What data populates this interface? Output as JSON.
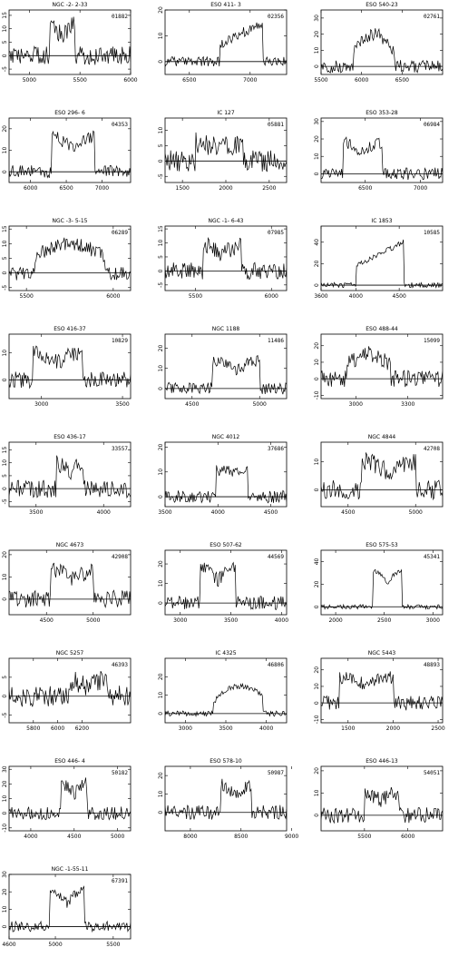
{
  "figure": {
    "layout": {
      "columns": 3,
      "rows": 9
    }
  },
  "chart_data": [
    {
      "type": "line",
      "title": "NGC -2- 2-33",
      "id": "01882",
      "xlim": [
        4800,
        6000
      ],
      "ylim": [
        -7,
        17
      ],
      "xticks": [
        5000,
        5500,
        6000
      ],
      "yticks": [
        -5,
        0,
        5,
        10,
        15
      ],
      "baseline": 0,
      "profile": {
        "lo": 5200,
        "hi": 5450,
        "height": 11
      },
      "noise": 3.5,
      "shape": "double",
      "seed": 1
    },
    {
      "type": "line",
      "title": "ESO 411- 3",
      "id": "02356",
      "xlim": [
        6300,
        7300
      ],
      "ylim": [
        -5,
        20
      ],
      "xticks": [
        6500,
        7000
      ],
      "yticks": [
        0,
        10,
        20
      ],
      "baseline": 0,
      "profile": {
        "lo": 6750,
        "hi": 7100,
        "height": 15
      },
      "noise": 2,
      "shape": "ramp",
      "seed": 2
    },
    {
      "type": "line",
      "title": "ESO 540-23",
      "id": "02761",
      "xlim": [
        5500,
        7000
      ],
      "ylim": [
        -5,
        35
      ],
      "xticks": [
        5500,
        6000,
        6500
      ],
      "yticks": [
        0,
        10,
        20,
        30
      ],
      "baseline": 0,
      "profile": {
        "lo": 5900,
        "hi": 6400,
        "height": 20
      },
      "noise": 4,
      "shape": "peaked",
      "seed": 3
    },
    {
      "type": "line",
      "title": "ESO 296- 6",
      "id": "04353",
      "xlim": [
        5700,
        7400
      ],
      "ylim": [
        -5,
        25
      ],
      "xticks": [
        6000,
        6500,
        7000
      ],
      "yticks": [
        0,
        10,
        20
      ],
      "baseline": 0,
      "profile": {
        "lo": 6300,
        "hi": 6900,
        "height": 16
      },
      "noise": 3,
      "shape": "double",
      "seed": 4
    },
    {
      "type": "line",
      "title": "IC 127",
      "id": "05881",
      "xlim": [
        1300,
        2700
      ],
      "ylim": [
        -7,
        14
      ],
      "xticks": [
        1500,
        2000,
        2500
      ],
      "yticks": [
        -5,
        0,
        5,
        10
      ],
      "baseline": 0,
      "profile": {
        "lo": 1650,
        "hi": 2200,
        "height": 6
      },
      "noise": 3.5,
      "shape": "double",
      "seed": 5
    },
    {
      "type": "line",
      "title": "ESO 353-28",
      "id": "06984",
      "xlim": [
        6100,
        7200
      ],
      "ylim": [
        -5,
        32
      ],
      "xticks": [
        6500,
        7000
      ],
      "yticks": [
        0,
        10,
        20,
        30
      ],
      "baseline": 0,
      "profile": {
        "lo": 6300,
        "hi": 6650,
        "height": 18
      },
      "noise": 3.5,
      "shape": "double",
      "seed": 6
    },
    {
      "type": "line",
      "title": "NGC -3- 5-15",
      "id": "06289",
      "xlim": [
        5400,
        6100
      ],
      "ylim": [
        -6,
        16
      ],
      "xticks": [
        5500,
        6000
      ],
      "yticks": [
        -5,
        0,
        5,
        10,
        15
      ],
      "baseline": 0,
      "profile": {
        "lo": 5550,
        "hi": 5950,
        "height": 10
      },
      "noise": 2.5,
      "shape": "dome",
      "seed": 7
    },
    {
      "type": "line",
      "title": "NGC -1- 6-43",
      "id": "07985",
      "xlim": [
        5300,
        6100
      ],
      "ylim": [
        -7,
        16
      ],
      "xticks": [
        5500,
        6000
      ],
      "yticks": [
        -5,
        0,
        5,
        10,
        15
      ],
      "baseline": 0,
      "profile": {
        "lo": 5550,
        "hi": 5800,
        "height": 9
      },
      "noise": 3,
      "shape": "double",
      "seed": 8
    },
    {
      "type": "line",
      "title": "IC 1853",
      "id": "10585",
      "xlim": [
        3600,
        5000
      ],
      "ylim": [
        -5,
        55
      ],
      "xticks": [
        3600,
        4000,
        4500
      ],
      "yticks": [
        0,
        20,
        40
      ],
      "baseline": 0,
      "profile": {
        "lo": 4000,
        "hi": 4550,
        "height": 40
      },
      "noise": 2.5,
      "shape": "ramp",
      "seed": 9
    },
    {
      "type": "line",
      "title": "ESO 416-37",
      "id": "10829",
      "xlim": [
        2800,
        3550
      ],
      "ylim": [
        -7,
        17
      ],
      "xticks": [
        3000,
        3500
      ],
      "yticks": [
        0,
        10
      ],
      "baseline": 0,
      "profile": {
        "lo": 2950,
        "hi": 3250,
        "height": 10
      },
      "noise": 3,
      "shape": "double",
      "seed": 10
    },
    {
      "type": "line",
      "title": "NGC 1188",
      "id": "11486",
      "xlim": [
        4300,
        5200
      ],
      "ylim": [
        -5,
        27
      ],
      "xticks": [
        4500,
        5000
      ],
      "yticks": [
        0,
        10,
        20
      ],
      "baseline": 0,
      "profile": {
        "lo": 4650,
        "hi": 5000,
        "height": 14
      },
      "noise": 3,
      "shape": "double",
      "seed": 11
    },
    {
      "type": "line",
      "title": "ESO 488-44",
      "id": "15099",
      "xlim": [
        2800,
        3500
      ],
      "ylim": [
        -12,
        27
      ],
      "xticks": [
        3000,
        3300
      ],
      "yticks": [
        -10,
        0,
        10,
        20
      ],
      "baseline": 0,
      "profile": {
        "lo": 2950,
        "hi": 3200,
        "height": 15
      },
      "noise": 5,
      "shape": "dome",
      "seed": 12
    },
    {
      "type": "line",
      "title": "ESO 436-17",
      "id": "33557",
      "xlim": [
        3300,
        4200
      ],
      "ylim": [
        -7,
        18
      ],
      "xticks": [
        3500,
        4000
      ],
      "yticks": [
        -5,
        0,
        5,
        10,
        15
      ],
      "baseline": 0,
      "profile": {
        "lo": 3650,
        "hi": 3850,
        "height": 10
      },
      "noise": 3.5,
      "shape": "double",
      "seed": 13
    },
    {
      "type": "line",
      "title": "NGC 4012",
      "id": "37686",
      "xlim": [
        3500,
        4650
      ],
      "ylim": [
        -4,
        22
      ],
      "xticks": [
        3500,
        4000,
        4500
      ],
      "yticks": [
        0,
        10,
        20
      ],
      "baseline": 0,
      "profile": {
        "lo": 3980,
        "hi": 4280,
        "height": 12
      },
      "noise": 2.5,
      "shape": "box",
      "seed": 14
    },
    {
      "type": "line",
      "title": "NGC 4844",
      "id": "42708",
      "xlim": [
        4300,
        5200
      ],
      "ylim": [
        -6,
        17
      ],
      "xticks": [
        4500,
        5000
      ],
      "yticks": [
        0,
        10
      ],
      "baseline": 0,
      "profile": {
        "lo": 4600,
        "hi": 5000,
        "height": 10
      },
      "noise": 3.5,
      "shape": "double",
      "seed": 15
    },
    {
      "type": "line",
      "title": "NGC 4673",
      "id": "42908",
      "xlim": [
        4100,
        5400
      ],
      "ylim": [
        -7,
        22
      ],
      "xticks": [
        4500,
        5000
      ],
      "yticks": [
        0,
        10,
        20
      ],
      "baseline": 0,
      "profile": {
        "lo": 4550,
        "hi": 5000,
        "height": 13
      },
      "noise": 4,
      "shape": "double",
      "seed": 16
    },
    {
      "type": "line",
      "title": "ESO 507-62",
      "id": "44569",
      "xlim": [
        2850,
        4050
      ],
      "ylim": [
        -6,
        27
      ],
      "xticks": [
        3000,
        3500,
        4000
      ],
      "yticks": [
        0,
        10,
        20
      ],
      "baseline": 0,
      "profile": {
        "lo": 3200,
        "hi": 3550,
        "height": 18
      },
      "noise": 3.5,
      "shape": "double",
      "seed": 17
    },
    {
      "type": "line",
      "title": "ESO 575-53",
      "id": "45341",
      "xlim": [
        1850,
        3100
      ],
      "ylim": [
        -7,
        50
      ],
      "xticks": [
        2000,
        2500,
        3000
      ],
      "yticks": [
        0,
        20,
        40
      ],
      "baseline": 0,
      "profile": {
        "lo": 2380,
        "hi": 2680,
        "height": 32
      },
      "noise": 2,
      "shape": "double",
      "seed": 18
    },
    {
      "type": "line",
      "title": "NGC 5257",
      "id": "46393",
      "xlim": [
        5600,
        6600
      ],
      "ylim": [
        -7,
        10
      ],
      "xticks": [
        5800,
        6000,
        6200
      ],
      "yticks": [
        -5,
        0,
        5
      ],
      "baseline": 0,
      "profile": {
        "lo": 6100,
        "hi": 6400,
        "height": 4
      },
      "noise": 2.8,
      "shape": "double",
      "seed": 19
    },
    {
      "type": "line",
      "title": "IC 4325",
      "id": "46806",
      "xlim": [
        2750,
        4250
      ],
      "ylim": [
        -5,
        30
      ],
      "xticks": [
        3000,
        3500,
        4000
      ],
      "yticks": [
        0,
        10,
        20
      ],
      "baseline": 0,
      "profile": {
        "lo": 3350,
        "hi": 3950,
        "height": 15
      },
      "noise": 1.5,
      "shape": "smooth",
      "seed": 20
    },
    {
      "type": "line",
      "title": "NGC 5443",
      "id": "48893",
      "xlim": [
        1200,
        2550
      ],
      "ylim": [
        -12,
        27
      ],
      "xticks": [
        1500,
        2000,
        2500
      ],
      "yticks": [
        -10,
        0,
        10,
        20
      ],
      "baseline": 0,
      "profile": {
        "lo": 1400,
        "hi": 2000,
        "height": 16
      },
      "noise": 4.5,
      "shape": "double",
      "seed": 21
    },
    {
      "type": "line",
      "title": "ESO 446- 4",
      "id": "50182",
      "xlim": [
        3750,
        5150
      ],
      "ylim": [
        -12,
        32
      ],
      "xticks": [
        4000,
        4500,
        5000
      ],
      "yticks": [
        -10,
        0,
        10,
        20,
        30
      ],
      "baseline": 0,
      "profile": {
        "lo": 4350,
        "hi": 4650,
        "height": 20
      },
      "noise": 4.5,
      "shape": "double",
      "seed": 22
    },
    {
      "type": "line",
      "title": "ESO 578-10",
      "id": "50987",
      "xlim": [
        7750,
        8950
      ],
      "ylim": [
        -10,
        25
      ],
      "xticks": [
        8000,
        8500,
        9000
      ],
      "yticks": [
        0,
        10,
        20
      ],
      "baseline": 0,
      "profile": {
        "lo": 8300,
        "hi": 8600,
        "height": 15
      },
      "noise": 4,
      "shape": "double",
      "seed": 23
    },
    {
      "type": "line",
      "title": "ESO 446-13",
      "id": "54051",
      "xlim": [
        5000,
        6400
      ],
      "ylim": [
        -7,
        22
      ],
      "xticks": [
        5500,
        6000
      ],
      "yticks": [
        0,
        10,
        20
      ],
      "baseline": 0,
      "profile": {
        "lo": 5500,
        "hi": 5900,
        "height": 10
      },
      "noise": 3.5,
      "shape": "double",
      "seed": 24
    },
    {
      "type": "line",
      "title": "NGC -1-55-11",
      "id": "67391",
      "xlim": [
        4600,
        5650
      ],
      "ylim": [
        -7,
        30
      ],
      "xticks": [
        4600,
        5000,
        5500
      ],
      "yticks": [
        0,
        10,
        20,
        30
      ],
      "baseline": 0,
      "profile": {
        "lo": 4950,
        "hi": 5250,
        "height": 21
      },
      "noise": 3,
      "shape": "double",
      "seed": 25
    }
  ]
}
